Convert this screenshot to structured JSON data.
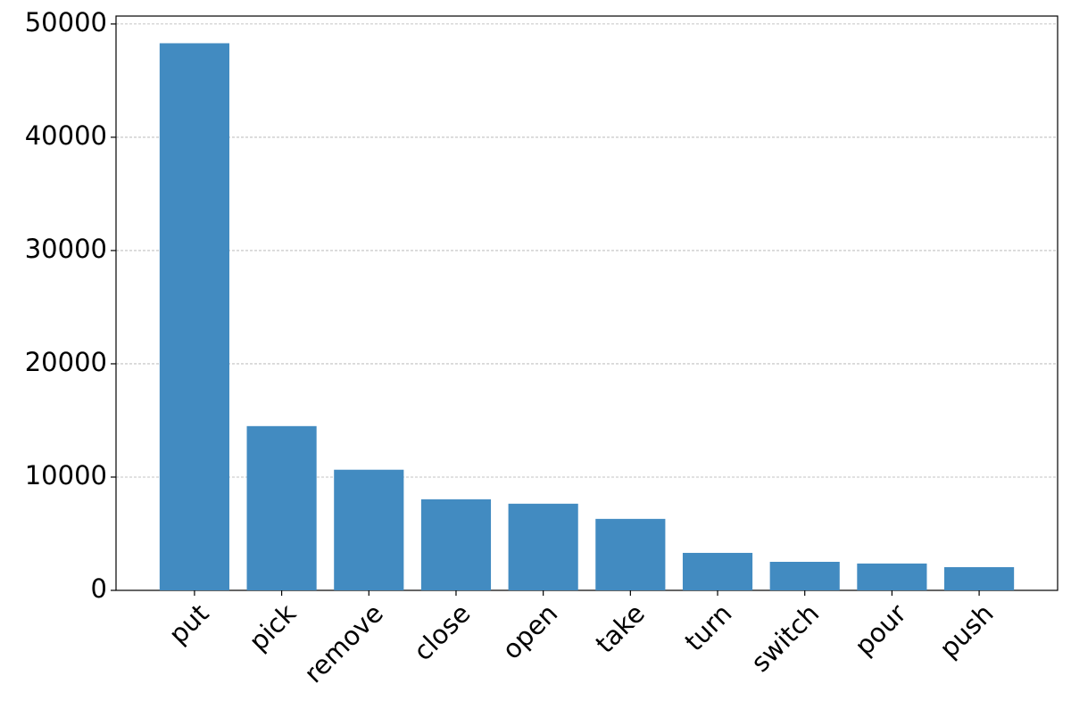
{
  "chart_data": {
    "type": "bar",
    "categories": [
      "put",
      "pick",
      "remove",
      "close",
      "open",
      "take",
      "turn",
      "switch",
      "pour",
      "push"
    ],
    "values": [
      48300,
      14500,
      10650,
      8040,
      7650,
      6310,
      3310,
      2520,
      2370,
      2050
    ],
    "color": "#428bc1",
    "ylim": [
      0,
      50700
    ],
    "yticks": [
      0,
      10000,
      20000,
      30000,
      40000,
      50000
    ],
    "grid": true
  }
}
